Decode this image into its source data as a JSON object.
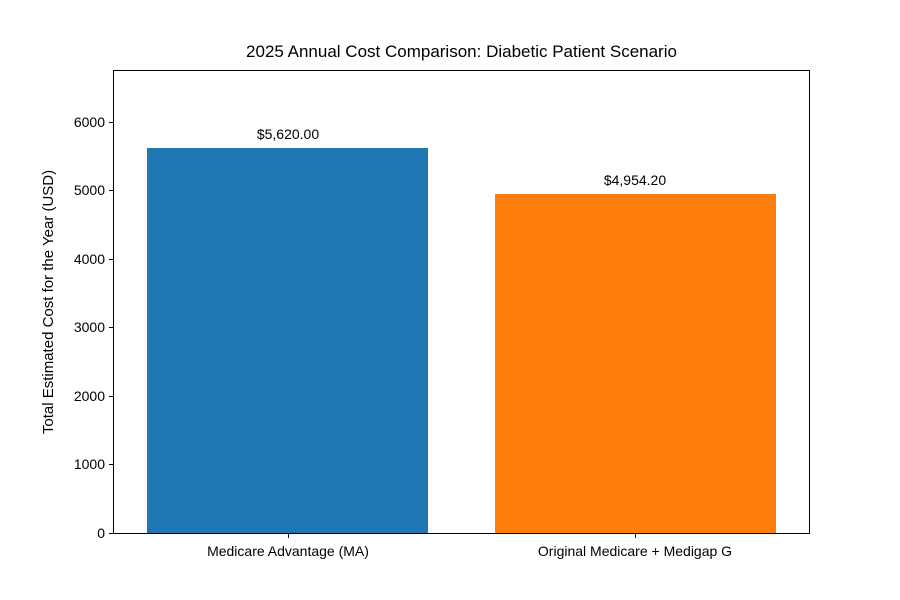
{
  "figure": {
    "background": "#ffffff",
    "text_color": "#000000",
    "axis_color": "#000000"
  },
  "chart_data": {
    "type": "bar",
    "title": "2025 Annual Cost Comparison: Diabetic Patient Scenario",
    "xlabel": "",
    "ylabel": "Total Estimated Cost for the Year (USD)",
    "categories": [
      "Medicare Advantage (MA)",
      "Original Medicare + Medigap G"
    ],
    "values": [
      5620.0,
      4954.2
    ],
    "value_labels": [
      "$5,620.00",
      "$4,954.20"
    ],
    "bar_colors": [
      "#1f77b4",
      "#ff7f0e"
    ],
    "yticks": [
      0,
      1000,
      2000,
      3000,
      4000,
      5000,
      6000
    ],
    "ylim": [
      0,
      6744
    ],
    "grid": false,
    "legend": null
  }
}
